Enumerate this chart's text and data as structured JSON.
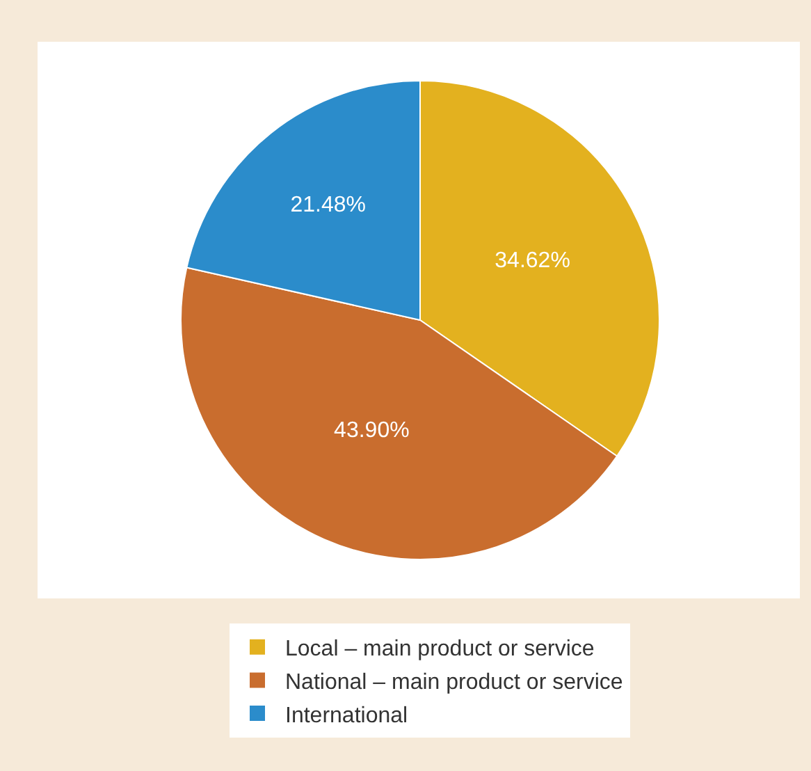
{
  "chart_data": {
    "type": "pie",
    "categories": [
      "Local – main product or service",
      "National – main product or service",
      "International"
    ],
    "values": [
      34.62,
      43.9,
      21.48
    ],
    "colors": [
      "#e3b11f",
      "#c96d2e",
      "#2b8ccb"
    ],
    "value_labels": [
      "34.62%",
      "43.90%",
      "21.48%"
    ],
    "legend": "bottom"
  }
}
